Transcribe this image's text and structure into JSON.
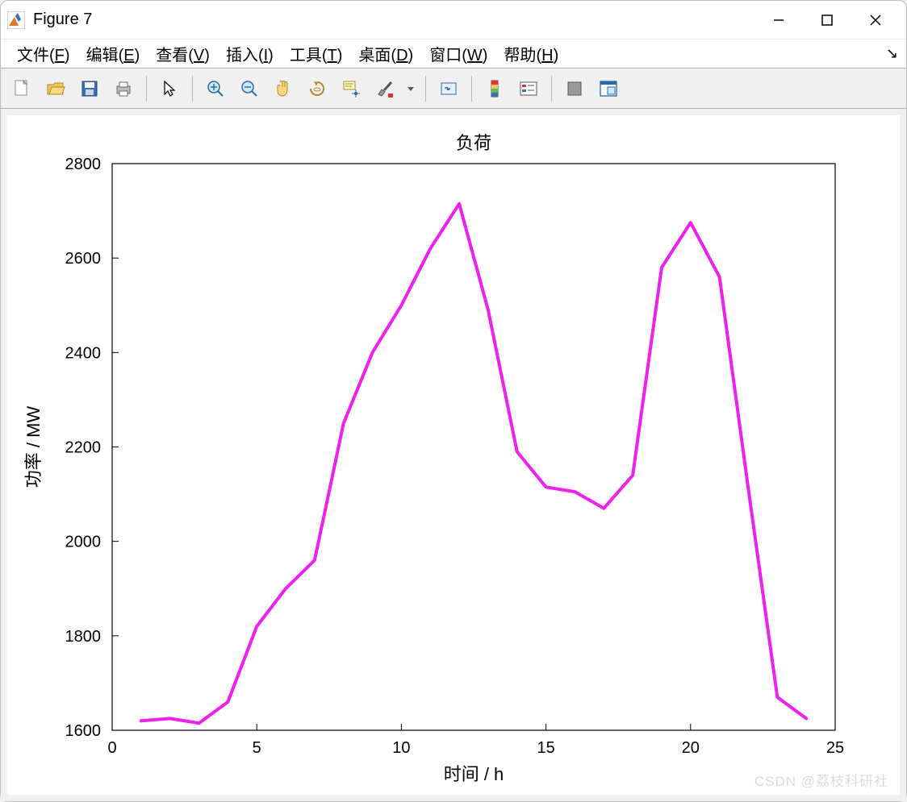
{
  "window": {
    "title": "Figure 7",
    "icon_colors": {
      "bg": "#ffffff",
      "triangle": "#d97a2b",
      "bars": "#3b6fb5",
      "border": "#6a6a6a"
    }
  },
  "menus": {
    "file": {
      "label": "文件",
      "accel": "F"
    },
    "edit": {
      "label": "编辑",
      "accel": "E"
    },
    "view": {
      "label": "查看",
      "accel": "V"
    },
    "insert": {
      "label": "插入",
      "accel": "I"
    },
    "tools": {
      "label": "工具",
      "accel": "T"
    },
    "desktop": {
      "label": "桌面",
      "accel": "D"
    },
    "window": {
      "label": "窗口",
      "accel": "W"
    },
    "help": {
      "label": "帮助",
      "accel": "H"
    }
  },
  "toolbar_icons": [
    "new-file",
    "open-file",
    "save",
    "print",
    "sep",
    "pointer",
    "sep",
    "zoom-in",
    "zoom-out",
    "pan",
    "rotate",
    "data-cursor",
    "brush",
    "sep",
    "link-plot",
    "sep",
    "colorbar",
    "legend",
    "sep",
    "hide-plot",
    "dock"
  ],
  "chart": {
    "type": "line",
    "title": "负荷",
    "xlabel": "时间 / h",
    "ylabel": "功率 / MW",
    "xlim": [
      0,
      25
    ],
    "ylim": [
      1600,
      2800
    ],
    "xticks": [
      0,
      5,
      10,
      15,
      20,
      25
    ],
    "yticks": [
      1600,
      1800,
      2000,
      2200,
      2400,
      2600,
      2800
    ],
    "line_color": "#ef1fef",
    "line_width": 4,
    "axis_color": "#000000",
    "background_color": "#ffffff",
    "title_fontsize": 22,
    "label_fontsize": 22,
    "tick_fontsize": 20,
    "series": {
      "x": [
        1,
        2,
        3,
        4,
        5,
        6,
        7,
        8,
        9,
        10,
        11,
        12,
        13,
        14,
        15,
        16,
        17,
        18,
        19,
        20,
        21,
        22,
        23,
        24
      ],
      "y": [
        1620,
        1625,
        1615,
        1660,
        1820,
        1900,
        1960,
        2250,
        2400,
        2500,
        2620,
        2715,
        2490,
        2190,
        2115,
        2105,
        2070,
        2140,
        2580,
        2675,
        2560,
        2110,
        1670,
        1625
      ]
    }
  },
  "watermark": "CSDN @荔枝科研社"
}
